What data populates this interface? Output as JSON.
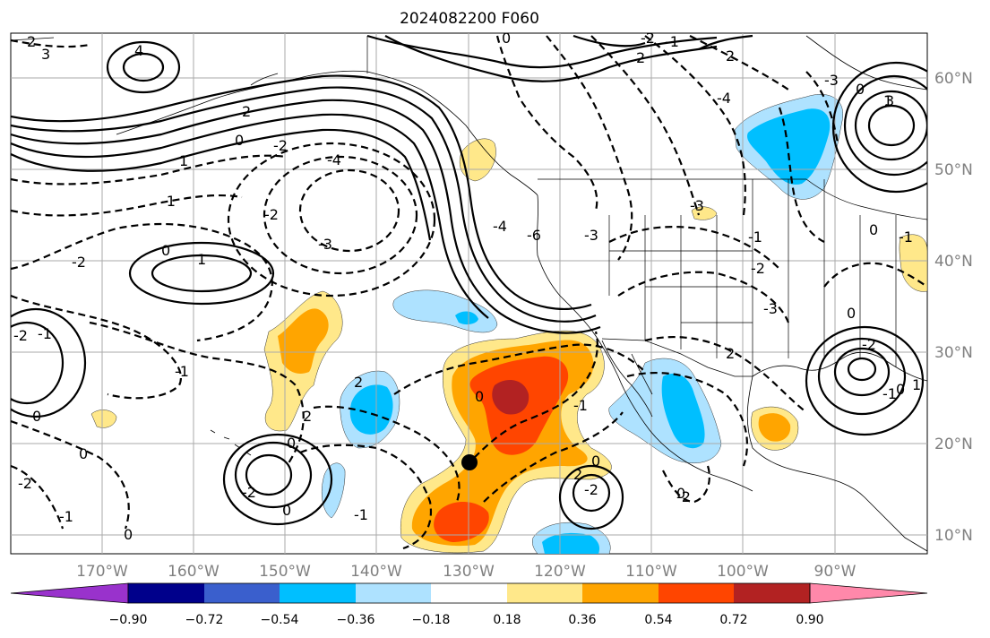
{
  "title": "2024082200 F060",
  "map": {
    "lon_ticks": [
      "170°W",
      "160°W",
      "150°W",
      "140°W",
      "130°W",
      "120°W",
      "110°W",
      "100°W",
      "90°W"
    ],
    "lat_ticks": [
      "60°N",
      "50°N",
      "40°N",
      "30°N",
      "20°N",
      "10°N"
    ],
    "contour_labels": [
      "2",
      "3",
      "4",
      "2",
      "0",
      "1",
      "-1",
      "-2",
      "-4",
      "-3",
      "-2",
      "0",
      "1",
      "-2",
      "-1",
      "-1",
      "-2",
      "0",
      "-2",
      "0",
      "-1",
      "0",
      "-2",
      "2",
      "-1",
      "0",
      "-4",
      "-6",
      "-3",
      "0",
      "-1",
      "2",
      "2",
      "-2",
      "-4",
      "-3",
      "-2",
      "-1",
      "0",
      "0",
      "1",
      "2",
      "0",
      "-1",
      "-1",
      "-3",
      "0",
      "-2",
      "-3",
      "3",
      "-2",
      "0",
      "-1",
      "2",
      "-2",
      "0",
      "2",
      "1",
      "0",
      "0"
    ],
    "colors": {
      "contour": "#000000",
      "grid": "#aaaaaa",
      "land_lines": "#000000"
    }
  },
  "colorbar": {
    "ticks": [
      "−0.90",
      "−0.72",
      "−0.54",
      "−0.36",
      "−0.18",
      "0.18",
      "0.36",
      "0.54",
      "0.72",
      "0.90"
    ],
    "colors": [
      "#9932cc",
      "#00008b",
      "#3a5fcd",
      "#00bfff",
      "#aee2ff",
      "#ffffff",
      "#ffe88a",
      "#ffa500",
      "#ff4500",
      "#b22222",
      "#ff88aa"
    ]
  },
  "fill_colors": {
    "light_blue": "#aee2ff",
    "blue": "#00bfff",
    "light_yellow": "#ffe88a",
    "orange": "#ffa500",
    "red_orange": "#ff4500",
    "dark_red": "#b22222"
  }
}
